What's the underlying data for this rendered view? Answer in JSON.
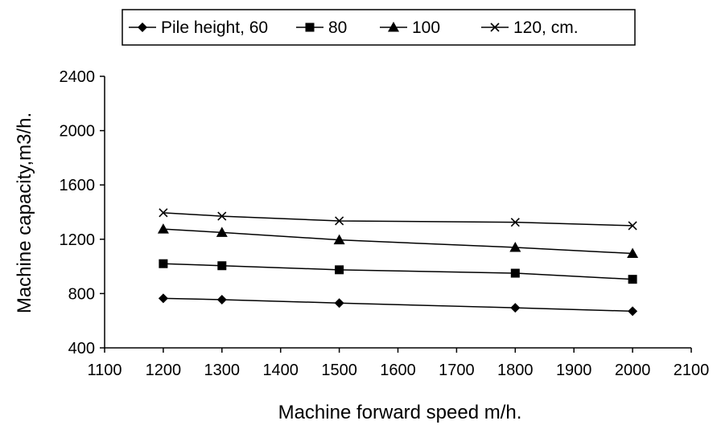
{
  "chart_data": {
    "type": "line",
    "xlabel": "Machine forward speed m/h.",
    "ylabel": "Machine capacity,m3/h.",
    "xlim": [
      1100,
      2100
    ],
    "ylim": [
      400,
      2400
    ],
    "x_ticks": [
      1100,
      1200,
      1300,
      1400,
      1500,
      1600,
      1700,
      1800,
      1900,
      2000,
      2100
    ],
    "y_ticks": [
      400,
      800,
      1200,
      1600,
      2000,
      2400
    ],
    "x": [
      1200,
      1300,
      1500,
      1800,
      2000
    ],
    "grid": false,
    "legend_position": "top",
    "series": [
      {
        "name": "Pile height, 60",
        "marker": "diamond",
        "values": [
          765,
          755,
          730,
          695,
          670
        ]
      },
      {
        "name": "80",
        "marker": "square",
        "values": [
          1020,
          1005,
          975,
          950,
          905
        ]
      },
      {
        "name": "100",
        "marker": "triangle",
        "values": [
          1275,
          1250,
          1195,
          1140,
          1095
        ]
      },
      {
        "name": "120, cm.",
        "marker": "x",
        "values": [
          1395,
          1370,
          1335,
          1325,
          1300
        ]
      }
    ],
    "line_color": "#000000"
  }
}
